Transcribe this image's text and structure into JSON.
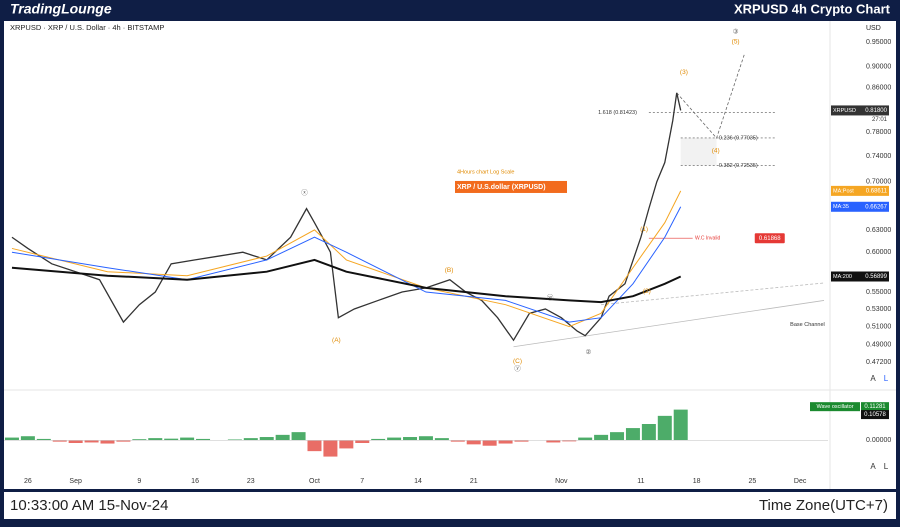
{
  "header": {
    "brand": "TradingLounge",
    "title": "XRPUSD 4h Crypto Chart"
  },
  "chart_data": {
    "type": "line",
    "title": "XRPUSD · XRP / U.S. Dollar · 4h · BITSTAMP",
    "y_unit": "USD",
    "log_scale": true,
    "grid": false,
    "xlim": [
      -3,
      100.5
    ],
    "xticks": [
      {
        "value": 0,
        "label": "26"
      },
      {
        "value": 6,
        "label": "Sep"
      },
      {
        "value": 14,
        "label": "9"
      },
      {
        "value": 21,
        "label": "16"
      },
      {
        "value": 28,
        "label": "23"
      },
      {
        "value": 36,
        "label": "Oct"
      },
      {
        "value": 42,
        "label": "7"
      },
      {
        "value": 49,
        "label": "14"
      },
      {
        "value": 56,
        "label": "21"
      },
      {
        "value": 67,
        "label": "Nov"
      },
      {
        "value": 77,
        "label": "11"
      },
      {
        "value": 84,
        "label": "18"
      },
      {
        "value": 91,
        "label": "25"
      },
      {
        "value": 97,
        "label": "Dec"
      }
    ],
    "ylim": [
      0.472,
      0.95
    ],
    "yticks": [
      {
        "value": 0.95,
        "label": "0.95000"
      },
      {
        "value": 0.9,
        "label": "0.90000"
      },
      {
        "value": 0.86,
        "label": "0.86000"
      },
      {
        "value": 0.78,
        "label": "0.78000"
      },
      {
        "value": 0.74,
        "label": "0.74000"
      },
      {
        "value": 0.7,
        "label": "0.70000"
      },
      {
        "value": 0.63,
        "label": "0.63000"
      },
      {
        "value": 0.6,
        "label": "0.60000"
      },
      {
        "value": 0.55,
        "label": "0.55000"
      },
      {
        "value": 0.53,
        "label": "0.53000"
      },
      {
        "value": 0.51,
        "label": "0.51000"
      },
      {
        "value": 0.49,
        "label": "0.49000"
      },
      {
        "value": 0.472,
        "label": "0.47200"
      }
    ],
    "series": [
      {
        "name": "XRPUSD",
        "color": "#333333",
        "width": 1.3,
        "last_label": "0.81800",
        "countdown": "27:01",
        "x": [
          -2,
          0,
          3,
          6,
          9,
          12,
          14,
          16,
          18,
          21,
          24,
          27,
          30,
          33,
          35,
          36,
          37,
          38,
          39,
          41,
          44,
          47,
          50,
          53,
          55,
          57,
          59,
          61,
          63,
          65,
          67,
          69,
          70,
          72,
          73,
          75,
          77,
          78,
          79,
          80,
          81,
          81.5,
          82
        ],
        "values": [
          0.62,
          0.605,
          0.585,
          0.575,
          0.565,
          0.515,
          0.535,
          0.55,
          0.585,
          0.59,
          0.595,
          0.6,
          0.59,
          0.62,
          0.66,
          0.64,
          0.62,
          0.6,
          0.52,
          0.53,
          0.54,
          0.55,
          0.555,
          0.565,
          0.55,
          0.54,
          0.52,
          0.495,
          0.525,
          0.53,
          0.52,
          0.505,
          0.5,
          0.52,
          0.545,
          0.56,
          0.62,
          0.66,
          0.7,
          0.73,
          0.8,
          0.85,
          0.818
        ]
      },
      {
        "name": "MA:Post",
        "color": "#f5a623",
        "width": 1,
        "last_label": "0.68611",
        "x": [
          -2,
          10,
          20,
          30,
          36,
          40,
          50,
          60,
          68,
          72,
          76,
          80,
          82
        ],
        "values": [
          0.605,
          0.575,
          0.57,
          0.595,
          0.63,
          0.59,
          0.555,
          0.535,
          0.51,
          0.525,
          0.58,
          0.64,
          0.68611
        ]
      },
      {
        "name": "MA:35",
        "color": "#2962ff",
        "width": 1,
        "last_label": "0.66267",
        "x": [
          -2,
          10,
          20,
          30,
          36,
          40,
          50,
          60,
          68,
          72,
          76,
          80,
          82
        ],
        "values": [
          0.6,
          0.58,
          0.565,
          0.59,
          0.62,
          0.6,
          0.55,
          0.54,
          0.515,
          0.52,
          0.56,
          0.62,
          0.66267
        ]
      },
      {
        "name": "MA:200",
        "color": "#111111",
        "width": 2,
        "last_label": "0.56899",
        "x": [
          -2,
          10,
          20,
          30,
          36,
          40,
          50,
          60,
          68,
          72,
          76,
          80,
          82
        ],
        "values": [
          0.58,
          0.57,
          0.565,
          0.575,
          0.59,
          0.575,
          0.555,
          0.545,
          0.54,
          0.538,
          0.545,
          0.56,
          0.56899
        ]
      }
    ],
    "fib_levels": [
      {
        "value": 0.81423,
        "label": "1.618 (0.81423)"
      },
      {
        "value": 0.77035,
        "label": "0.236 (0.77035)"
      },
      {
        "value": 0.72535,
        "label": "0.382 (0.72535)"
      }
    ],
    "invalidation": {
      "name": "W.C Invalid",
      "value": 0.61868,
      "label": "0.61868"
    },
    "projection": {
      "x": [
        81.5,
        86.5,
        90
      ],
      "values": [
        0.85,
        0.77,
        0.925
      ]
    },
    "channels": [
      {
        "x": [
          61,
          100
        ],
        "values": [
          0.488,
          0.54
        ]
      },
      {
        "x": [
          72,
          100
        ],
        "values": [
          0.535,
          0.561
        ]
      }
    ],
    "annotations": [
      {
        "text": "(3)",
        "x": 82.4,
        "y": 0.889,
        "color": "#e08a00"
      },
      {
        "text": "(5)",
        "x": 88.9,
        "y": 0.95,
        "color": "#e08a00"
      },
      {
        "text": "③",
        "x": 88.9,
        "y": 0.971,
        "color": "#555555"
      },
      {
        "text": "(4)",
        "x": 86.4,
        "y": 0.749,
        "color": "#e08a00"
      },
      {
        "text": "(1)",
        "x": 77.4,
        "y": 0.631,
        "color": "#e08a00"
      },
      {
        "text": "(2)",
        "x": 77.75,
        "y": 0.551,
        "color": "#e08a00"
      },
      {
        "text": "(A)",
        "x": 38.75,
        "y": 0.495,
        "color": "#e08a00"
      },
      {
        "text": "(B)",
        "x": 52.9,
        "y": 0.577,
        "color": "#e08a00"
      },
      {
        "text": "(C)",
        "x": 61.5,
        "y": 0.473,
        "color": "#e08a00"
      },
      {
        "text": "ⓧ",
        "x": 34.75,
        "y": 0.683,
        "color": "#555555"
      },
      {
        "text": "ⓨ",
        "x": 61.5,
        "y": 0.465,
        "color": "#555555"
      },
      {
        "text": "ⓦ",
        "x": 65.6,
        "y": 0.543,
        "color": "#555555"
      },
      {
        "text": "②",
        "x": 70.4,
        "y": 0.482,
        "color": "#555555"
      },
      {
        "text": "4Hours chart  Log Scale",
        "x": 53.9,
        "y": 0.715,
        "color": "#e08a00"
      },
      {
        "text": "Base Channel",
        "x": 95.75,
        "y": 0.512,
        "color": "#333333"
      }
    ],
    "banner": {
      "text": "XRP / U.S.dollar (XRPUSD)",
      "x": 53.9,
      "y": 0.692,
      "color": "#f26b1d"
    }
  },
  "oscillator": {
    "name": "Wave oscillator",
    "ylim": [
      -0.08,
      0.13
    ],
    "yticks": [
      {
        "value": 0,
        "label": "0.00000"
      }
    ],
    "tags": [
      {
        "value": 0.11281,
        "label": "0.11281",
        "color": "#1b8a2f"
      },
      {
        "value": 0.10578,
        "label": "0.10578",
        "color": "#111111"
      }
    ],
    "x": [
      -2,
      0,
      2,
      4,
      6,
      8,
      10,
      12,
      14,
      16,
      18,
      20,
      22,
      24,
      26,
      28,
      30,
      32,
      34,
      36,
      38,
      40,
      42,
      44,
      46,
      48,
      50,
      52,
      54,
      56,
      58,
      60,
      62,
      64,
      66,
      68,
      70,
      72,
      74,
      76,
      78,
      80,
      82
    ],
    "values": [
      0.01,
      0.015,
      0.005,
      -0.005,
      -0.01,
      -0.008,
      -0.012,
      -0.005,
      0.004,
      0.008,
      0.006,
      0.01,
      0.005,
      0.0,
      0.003,
      0.008,
      0.012,
      0.02,
      0.03,
      -0.04,
      -0.06,
      -0.03,
      -0.01,
      0.005,
      0.01,
      0.012,
      0.015,
      0.008,
      -0.005,
      -0.015,
      -0.02,
      -0.012,
      -0.005,
      0.0,
      -0.008,
      -0.004,
      0.01,
      0.02,
      0.03,
      0.045,
      0.06,
      0.09,
      0.113
    ]
  },
  "controls": [
    "A",
    "L",
    "A",
    "L"
  ],
  "footer": {
    "time": "10:33:00 AM 15-Nov-24",
    "timezone": "Time Zone(UTC+7)"
  }
}
